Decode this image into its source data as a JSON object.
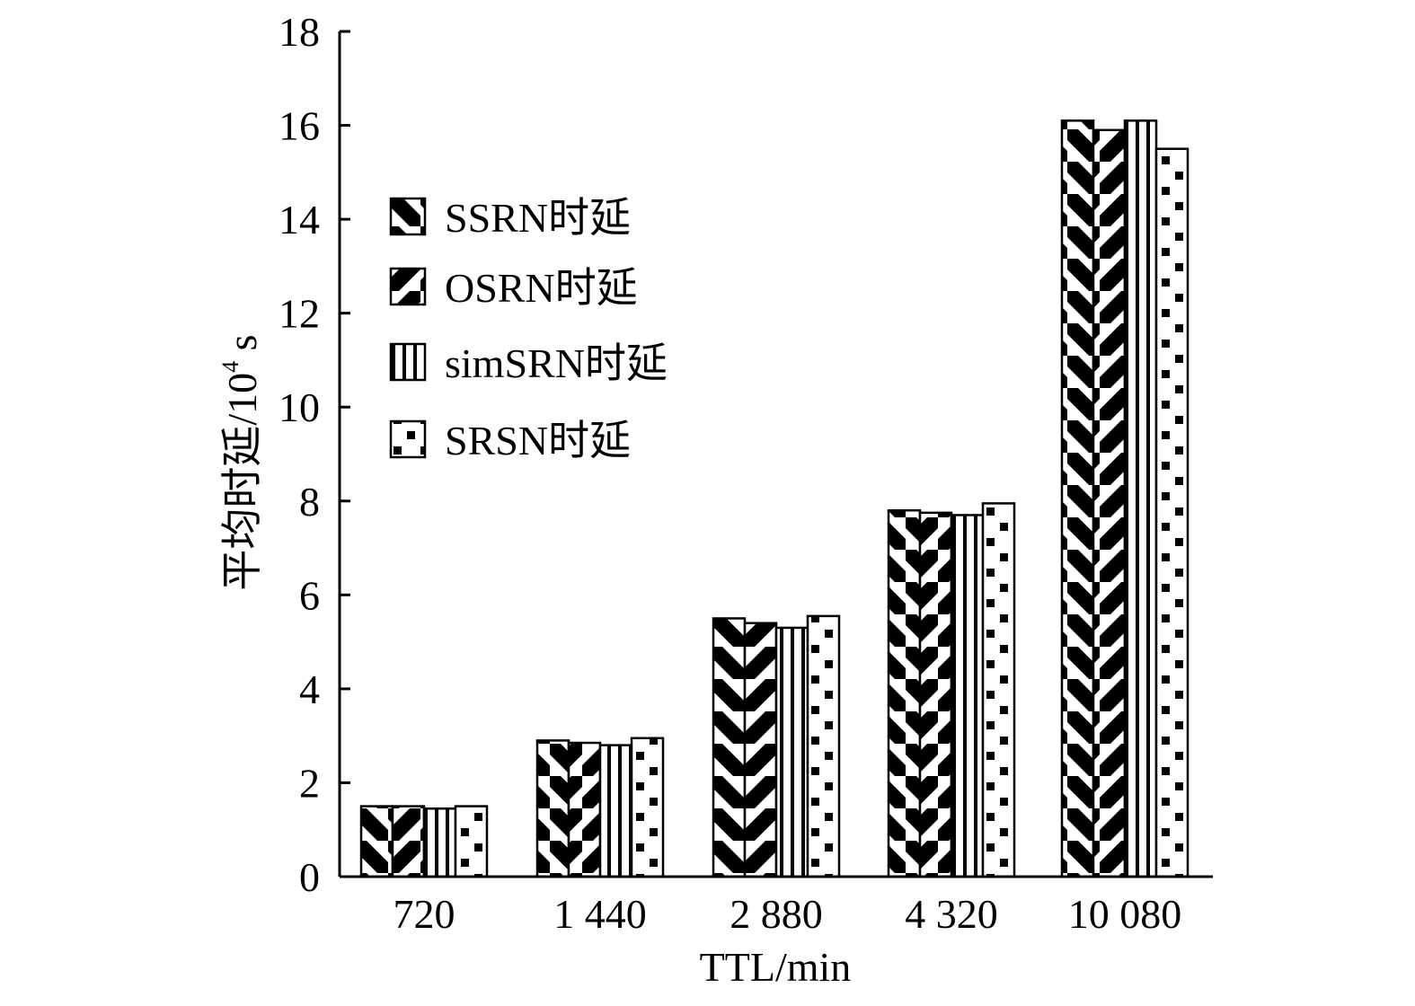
{
  "chart_data": {
    "type": "bar",
    "xlabel": "TTL/min",
    "ylabel_main": "平均时延/10",
    "ylabel_sup": "4",
    "ylabel_unit": " s",
    "ylim": [
      0,
      18
    ],
    "yticks": [
      "0",
      "2",
      "4",
      "6",
      "8",
      "10",
      "12",
      "14",
      "16",
      "18"
    ],
    "categories": [
      "720",
      "1 440",
      "2 880",
      "4 320",
      "10 080"
    ],
    "series": [
      {
        "name": "SSRN时延",
        "pattern": "back-diagonal",
        "values": [
          1.5,
          2.9,
          5.5,
          7.8,
          16.1
        ]
      },
      {
        "name": "OSRN时延",
        "pattern": "forward-diagonal",
        "values": [
          1.5,
          2.85,
          5.4,
          7.75,
          15.9
        ]
      },
      {
        "name": "simSRN时延",
        "pattern": "vertical-stripes",
        "values": [
          1.45,
          2.8,
          5.3,
          7.7,
          16.1
        ]
      },
      {
        "name": "SRSN时延",
        "pattern": "dots",
        "values": [
          1.5,
          2.95,
          5.55,
          7.95,
          15.5
        ]
      }
    ],
    "legend_position": "top-left",
    "grid": false
  }
}
